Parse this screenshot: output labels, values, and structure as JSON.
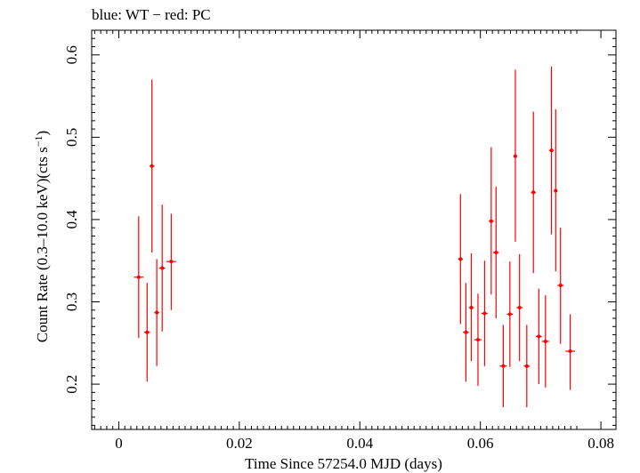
{
  "header": {
    "text": "blue: WT − red: PC"
  },
  "chart_data": {
    "type": "scatter",
    "title": "blue: WT − red: PC",
    "xlabel": "Time Since 57254.0 MJD (days)",
    "ylabel_main": "Count Rate (0.3–10.0 keV)(cts s",
    "ylabel_sup": "−1",
    "ylabel_end": ")",
    "xlim": [
      -0.0045,
      0.0825
    ],
    "ylim": [
      0.145,
      0.63
    ],
    "x_ticks": [
      0,
      0.02,
      0.04,
      0.06,
      0.08
    ],
    "x_tick_labels": [
      "0",
      "0.02",
      "0.04",
      "0.06",
      "0.08"
    ],
    "y_ticks": [
      0.2,
      0.3,
      0.4,
      0.5,
      0.6
    ],
    "y_tick_labels": [
      "0.2",
      "0.3",
      "0.4",
      "0.5",
      "0.6"
    ],
    "grid": false,
    "series": [
      {
        "color": "#ff0000",
        "points": [
          {
            "x": 0.0033,
            "xerr": 0.0008,
            "y": 0.33,
            "ylo": 0.256,
            "yhi": 0.404
          },
          {
            "x": 0.0047,
            "xerr": 0.0005,
            "y": 0.263,
            "ylo": 0.203,
            "yhi": 0.323
          },
          {
            "x": 0.0055,
            "xerr": 0.0004,
            "y": 0.465,
            "ylo": 0.36,
            "yhi": 0.57
          },
          {
            "x": 0.0063,
            "xerr": 0.0004,
            "y": 0.287,
            "ylo": 0.222,
            "yhi": 0.352
          },
          {
            "x": 0.0072,
            "xerr": 0.0005,
            "y": 0.341,
            "ylo": 0.264,
            "yhi": 0.418
          },
          {
            "x": 0.0087,
            "xerr": 0.0008,
            "y": 0.349,
            "ylo": 0.29,
            "yhi": 0.407
          },
          {
            "x": 0.0567,
            "xerr": 0.0004,
            "y": 0.352,
            "ylo": 0.273,
            "yhi": 0.431
          },
          {
            "x": 0.0576,
            "xerr": 0.0005,
            "y": 0.263,
            "ylo": 0.203,
            "yhi": 0.323
          },
          {
            "x": 0.0585,
            "xerr": 0.0004,
            "y": 0.293,
            "ylo": 0.228,
            "yhi": 0.359
          },
          {
            "x": 0.0596,
            "xerr": 0.0006,
            "y": 0.254,
            "ylo": 0.198,
            "yhi": 0.31
          },
          {
            "x": 0.0607,
            "xerr": 0.0005,
            "y": 0.286,
            "ylo": 0.222,
            "yhi": 0.35
          },
          {
            "x": 0.0618,
            "xerr": 0.0004,
            "y": 0.398,
            "ylo": 0.309,
            "yhi": 0.488
          },
          {
            "x": 0.0626,
            "xerr": 0.0005,
            "y": 0.36,
            "ylo": 0.28,
            "yhi": 0.44
          },
          {
            "x": 0.0638,
            "xerr": 0.0006,
            "y": 0.222,
            "ylo": 0.172,
            "yhi": 0.272
          },
          {
            "x": 0.0649,
            "xerr": 0.0005,
            "y": 0.285,
            "ylo": 0.221,
            "yhi": 0.349
          },
          {
            "x": 0.0658,
            "xerr": 0.0003,
            "y": 0.477,
            "ylo": 0.373,
            "yhi": 0.582
          },
          {
            "x": 0.0665,
            "xerr": 0.0005,
            "y": 0.293,
            "ylo": 0.228,
            "yhi": 0.358
          },
          {
            "x": 0.0677,
            "xerr": 0.0005,
            "y": 0.222,
            "ylo": 0.172,
            "yhi": 0.272
          },
          {
            "x": 0.0688,
            "xerr": 0.0004,
            "y": 0.433,
            "ylo": 0.335,
            "yhi": 0.531
          },
          {
            "x": 0.0697,
            "xerr": 0.0005,
            "y": 0.258,
            "ylo": 0.2,
            "yhi": 0.316
          },
          {
            "x": 0.0708,
            "xerr": 0.0006,
            "y": 0.252,
            "ylo": 0.196,
            "yhi": 0.308
          },
          {
            "x": 0.0718,
            "xerr": 0.0004,
            "y": 0.484,
            "ylo": 0.382,
            "yhi": 0.586
          },
          {
            "x": 0.0725,
            "xerr": 0.0003,
            "y": 0.435,
            "ylo": 0.337,
            "yhi": 0.534
          },
          {
            "x": 0.0733,
            "xerr": 0.0005,
            "y": 0.32,
            "ylo": 0.249,
            "yhi": 0.39
          },
          {
            "x": 0.0749,
            "xerr": 0.0008,
            "y": 0.24,
            "ylo": 0.193,
            "yhi": 0.285
          }
        ]
      }
    ]
  }
}
